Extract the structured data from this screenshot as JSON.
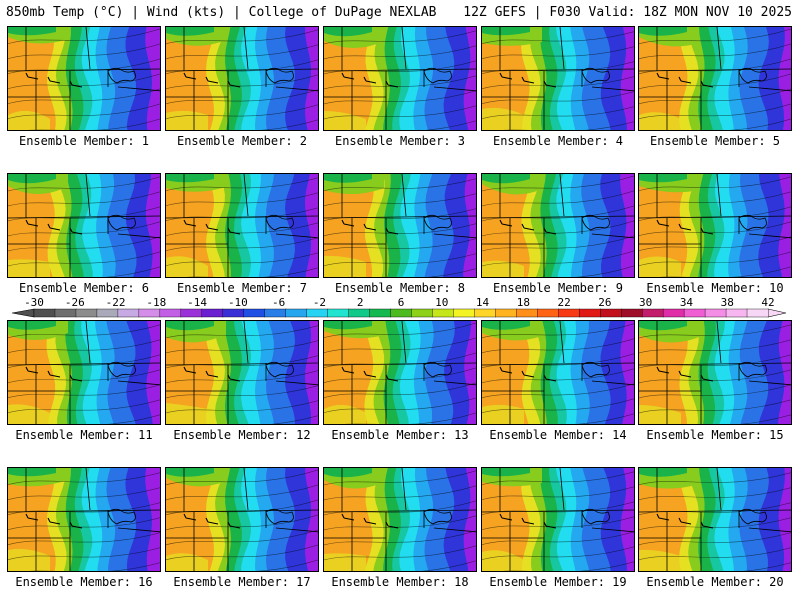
{
  "header": {
    "left": "850mb Temp (°C) | Wind (kts) | College of DuPage NEXLAB",
    "right": "12Z GEFS | F030 Valid: 18Z MON NOV 10 2025"
  },
  "panels": [
    "Ensemble Member: 1",
    "Ensemble Member: 2",
    "Ensemble Member: 3",
    "Ensemble Member: 4",
    "Ensemble Member: 5",
    "Ensemble Member: 6",
    "Ensemble Member: 7",
    "Ensemble Member: 8",
    "Ensemble Member: 9",
    "Ensemble Member: 10",
    "Ensemble Member: 11",
    "Ensemble Member: 12",
    "Ensemble Member: 13",
    "Ensemble Member: 14",
    "Ensemble Member: 15",
    "Ensemble Member: 16",
    "Ensemble Member: 17",
    "Ensemble Member: 18",
    "Ensemble Member: 19",
    "Ensemble Member: 20"
  ],
  "colorbar": {
    "units": "°C",
    "ticks": [
      "-30",
      "-26",
      "-22",
      "-18",
      "-14",
      "-10",
      "-6",
      "-2",
      "2",
      "6",
      "10",
      "14",
      "18",
      "22",
      "26",
      "30",
      "34",
      "38",
      "42"
    ],
    "colors": [
      "#505050",
      "#6e6e6e",
      "#8c8c8c",
      "#a9a9b9",
      "#c7a9e3",
      "#d48de8",
      "#c35ee6",
      "#9b32d9",
      "#6a1fd1",
      "#3a2fd6",
      "#1f4fe3",
      "#2a7ee8",
      "#27a6f0",
      "#27d3f2",
      "#20e4d0",
      "#12c98a",
      "#16b850",
      "#4dbb1f",
      "#8ed11a",
      "#c6e61c",
      "#f3f326",
      "#ffd52a",
      "#ffb320",
      "#ff8f18",
      "#ff6416",
      "#f83a14",
      "#e01b16",
      "#c20f1c",
      "#9e0e28",
      "#c31c6a",
      "#e02ea8",
      "#ef5ed3",
      "#f48de6",
      "#f7b6ef",
      "#f7d7f5"
    ],
    "palette": {
      "purple": "#9b1fe3",
      "blue_deep": "#2f35d9",
      "blue": "#2a73e6",
      "sky": "#24a8f0",
      "cyan": "#22dcf0",
      "teal": "#16c7a2",
      "green": "#19b34a",
      "lime": "#88cc1e",
      "yellow": "#e6e022",
      "orange": "#f5a321"
    }
  }
}
